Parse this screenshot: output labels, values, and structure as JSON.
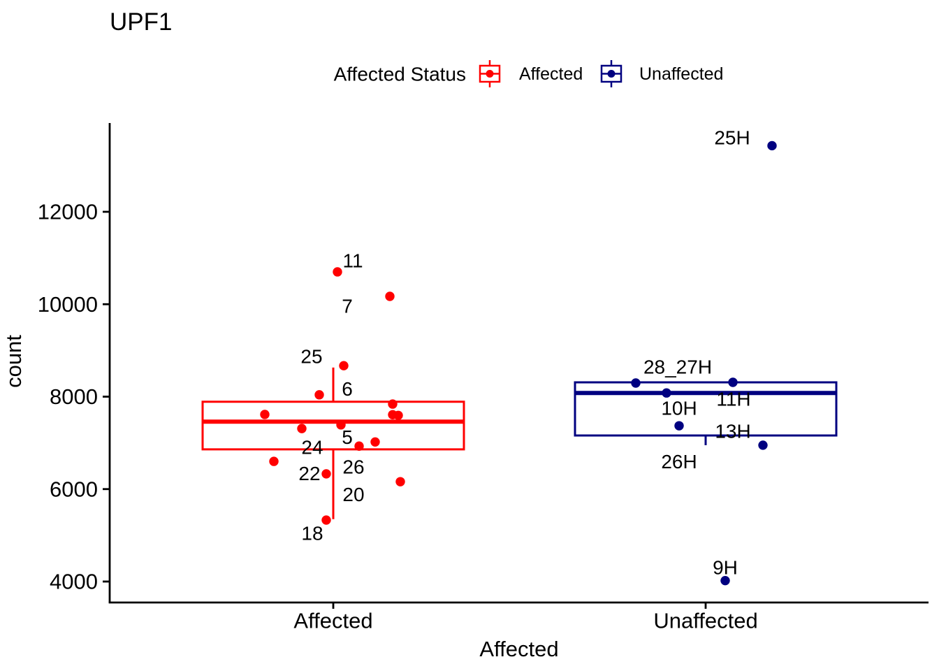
{
  "title": "UPF1",
  "legend": {
    "title": "Affected Status",
    "position": "top",
    "items": [
      {
        "label": "Affected",
        "color": "#ff0000"
      },
      {
        "label": "Unaffected",
        "color": "#000080"
      }
    ]
  },
  "axes": {
    "y_label": "count",
    "x_label": "Affected",
    "y_tick_labels": [
      "4000",
      "6000",
      "8000",
      "10000",
      "12000"
    ],
    "x_categories": [
      "Affected",
      "Unaffected"
    ]
  },
  "chart_data": {
    "type": "boxplot",
    "subtype": "boxplot-with-jittered-points-and-labels",
    "title": "UPF1",
    "xlabel": "Affected",
    "ylabel": "count",
    "ylim": [
      3550,
      13920
    ],
    "grid": false,
    "legend_position": "top",
    "y_ticks": [
      4000,
      6000,
      8000,
      10000,
      12000
    ],
    "categories": [
      "Affected",
      "Unaffected"
    ],
    "series": [
      {
        "name": "Affected",
        "color": "#ff0000",
        "box": {
          "whisker_low": 5350,
          "q1": 6860,
          "median": 7460,
          "q3": 7890,
          "whisker_high": 8630
        },
        "points": [
          {
            "v": 10700,
            "dx": 6
          },
          {
            "v": 10170,
            "dx": 81
          },
          {
            "v": 8670,
            "dx": 15
          },
          {
            "v": 8040,
            "dx": -20
          },
          {
            "v": 7840,
            "dx": 85
          },
          {
            "v": 7615,
            "dx": -98
          },
          {
            "v": 7610,
            "dx": 85
          },
          {
            "v": 7595,
            "dx": 93
          },
          {
            "v": 7390,
            "dx": 11
          },
          {
            "v": 7310,
            "dx": -45
          },
          {
            "v": 7020,
            "dx": 60
          },
          {
            "v": 6930,
            "dx": 37
          },
          {
            "v": 6600,
            "dx": -85
          },
          {
            "v": 6330,
            "dx": -10
          },
          {
            "v": 6160,
            "dx": 96
          },
          {
            "v": 5330,
            "dx": -10
          }
        ],
        "point_labels": [
          {
            "text": "11",
            "v": 10940,
            "dx": 28
          },
          {
            "text": "7",
            "v": 9960,
            "dx": 20
          },
          {
            "text": "25",
            "v": 8870,
            "dx": -31
          },
          {
            "text": "6",
            "v": 8170,
            "dx": 20
          },
          {
            "text": "5",
            "v": 7120,
            "dx": 20
          },
          {
            "text": "24",
            "v": 6900,
            "dx": -30
          },
          {
            "text": "26",
            "v": 6480,
            "dx": 29
          },
          {
            "text": "22",
            "v": 6340,
            "dx": -34
          },
          {
            "text": "20",
            "v": 5880,
            "dx": 29
          },
          {
            "text": "18",
            "v": 5040,
            "dx": -30
          }
        ]
      },
      {
        "name": "Unaffected",
        "color": "#000080",
        "box": {
          "whisker_low": 6950,
          "q1": 7160,
          "median": 8080,
          "q3": 8310,
          "whisker_high": 8310
        },
        "points": [
          {
            "v": 13430,
            "dx": 95
          },
          {
            "v": 8310,
            "dx": 39
          },
          {
            "v": 8295,
            "dx": -100
          },
          {
            "v": 8080,
            "dx": -56
          },
          {
            "v": 7370,
            "dx": -38
          },
          {
            "v": 6950,
            "dx": 82
          },
          {
            "v": 4020,
            "dx": 28
          }
        ],
        "point_labels": [
          {
            "text": "25H",
            "v": 13600,
            "dx": 38
          },
          {
            "text": "28_27H",
            "v": 8640,
            "dx": -40
          },
          {
            "text": "11H",
            "v": 7950,
            "dx": 40
          },
          {
            "text": "10H",
            "v": 7750,
            "dx": -38
          },
          {
            "text": "13H",
            "v": 7250,
            "dx": 39
          },
          {
            "text": "26H",
            "v": 6590,
            "dx": -38
          },
          {
            "text": "9H",
            "v": 4300,
            "dx": 28
          }
        ]
      }
    ]
  }
}
